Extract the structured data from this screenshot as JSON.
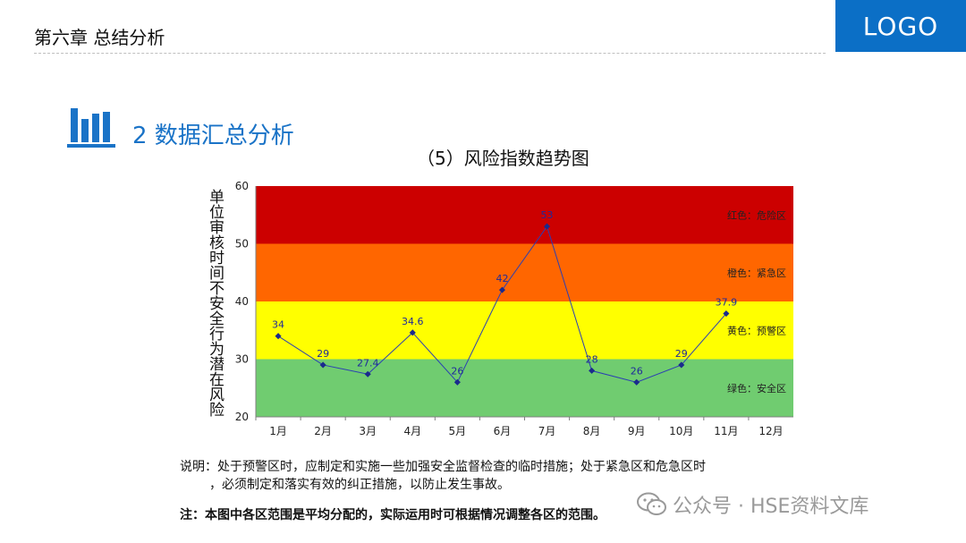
{
  "header": {
    "chapter_title": "第六章 总结分析",
    "logo_text": "LOGO"
  },
  "section": {
    "title": "2 数据汇总分析",
    "icon": "bar-chart-icon"
  },
  "colors": {
    "accent": "#1a73c7",
    "logo_bg": "#0b6fc6",
    "zone_red": "#cc0000",
    "zone_orange": "#ff6600",
    "zone_yellow": "#ffff00",
    "zone_green": "#70cc70",
    "series_line": "#2b3fb3",
    "data_label": "#1f2a9a"
  },
  "chart_data": {
    "type": "line",
    "title": "（5）风险指数趋势图",
    "ylabel": "单位审核时间不安全行为潜在风险",
    "xlabel": "",
    "categories": [
      "1月",
      "2月",
      "3月",
      "4月",
      "5月",
      "6月",
      "7月",
      "8月",
      "9月",
      "10月",
      "11月",
      "12月"
    ],
    "values": [
      34,
      29,
      27.4,
      34.6,
      26,
      42,
      53,
      28,
      26,
      29,
      37.9,
      null
    ],
    "data_labels": [
      "34",
      "29",
      "27.4",
      "34.6",
      "26",
      "42",
      "53",
      "28",
      "26",
      "29",
      "37.9",
      ""
    ],
    "ylim": [
      20,
      60
    ],
    "yticks": [
      "20",
      "30",
      "40",
      "50",
      "60"
    ],
    "zones": [
      {
        "label": "红色：危险区",
        "from": 50,
        "to": 60,
        "color": "#cc0000"
      },
      {
        "label": "橙色：紧急区",
        "from": 40,
        "to": 50,
        "color": "#ff6600"
      },
      {
        "label": "黄色：预警区",
        "from": 30,
        "to": 40,
        "color": "#ffff00"
      },
      {
        "label": "绿色：安全区",
        "from": 20,
        "to": 30,
        "color": "#70cc70"
      }
    ],
    "grid": false,
    "legend": "none"
  },
  "notes": {
    "line1": "说明：处于预警区时，应制定和实施一些加强安全监督检查的临时措施；处于紧急区和危急区时",
    "line2": "，必须制定和落实有效的纠正措施，以防止发生事故。",
    "bold_note": "注：本图中各区范围是平均分配的，实际运用时可根据情况调整各区的范围。"
  },
  "watermark": {
    "text": "公众号 · HSE资料文库",
    "icon": "wechat-icon"
  }
}
